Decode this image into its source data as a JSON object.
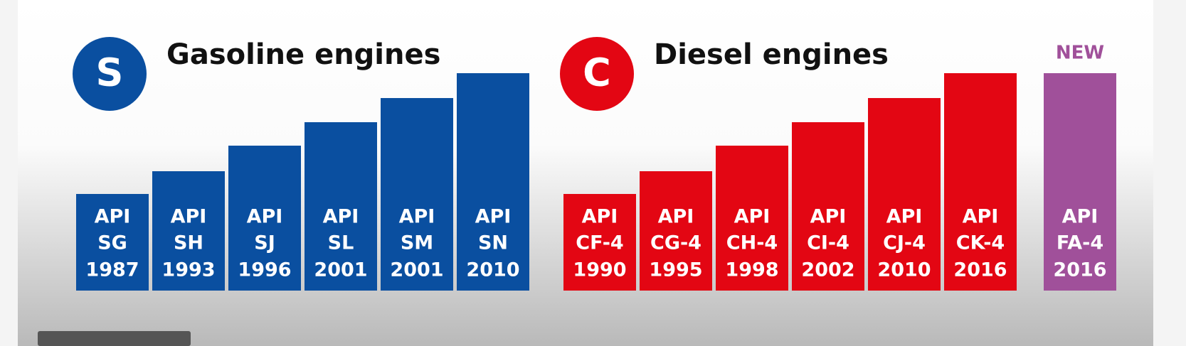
{
  "groups": [
    {
      "badge": "S",
      "title": "Gasoline engines",
      "items": [
        {
          "prefix": "API",
          "grade": "SG",
          "year": "1987"
        },
        {
          "prefix": "API",
          "grade": "SH",
          "year": "1993"
        },
        {
          "prefix": "API",
          "grade": "SJ",
          "year": "1996"
        },
        {
          "prefix": "API",
          "grade": "SL",
          "year": "2001"
        },
        {
          "prefix": "API",
          "grade": "SM",
          "year": "2001"
        },
        {
          "prefix": "API",
          "grade": "SN",
          "year": "2010"
        }
      ]
    },
    {
      "badge": "C",
      "title": "Diesel engines",
      "items": [
        {
          "prefix": "API",
          "grade": "CF-4",
          "year": "1990"
        },
        {
          "prefix": "API",
          "grade": "CG-4",
          "year": "1995"
        },
        {
          "prefix": "API",
          "grade": "CH-4",
          "year": "1998"
        },
        {
          "prefix": "API",
          "grade": "CI-4",
          "year": "2002"
        },
        {
          "prefix": "API",
          "grade": "CJ-4",
          "year": "2010"
        },
        {
          "prefix": "API",
          "grade": "CK-4",
          "year": "2016"
        }
      ]
    }
  ],
  "new_item": {
    "tag": "NEW",
    "prefix": "API",
    "grade": "FA-4",
    "year": "2016"
  }
}
